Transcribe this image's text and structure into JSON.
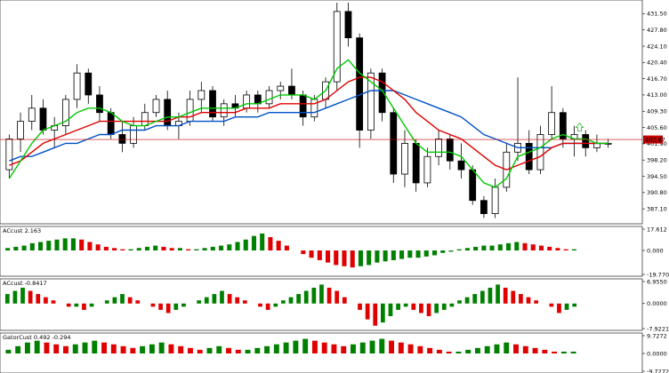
{
  "chart_data": [
    {
      "type": "candlestick",
      "y_ticks": [
        "431.50",
        "427.80",
        "424.10",
        "420.40",
        "416.70",
        "413.00",
        "409.30",
        "405.60",
        "401.90",
        "398.20",
        "394.50",
        "390.80",
        "387.10"
      ],
      "ylim": [
        384.5,
        433.8
      ],
      "price_label": "402.87",
      "price_value": 402.87,
      "colors": {
        "ma_fast": "#00c800",
        "ma_mid": "#e00000",
        "ma_slow": "#0050c8",
        "price_line": "#c00000",
        "price_tag": "#c00000",
        "candle": "#000000",
        "arrow": "#40c040"
      },
      "candles": [
        {
          "o": 396,
          "h": 404,
          "l": 394,
          "c": 403
        },
        {
          "o": 403,
          "h": 409,
          "l": 400,
          "c": 407
        },
        {
          "o": 407,
          "h": 413,
          "l": 405,
          "c": 410
        },
        {
          "o": 410,
          "h": 412,
          "l": 404,
          "c": 405
        },
        {
          "o": 405,
          "h": 408,
          "l": 401,
          "c": 406
        },
        {
          "o": 406,
          "h": 413,
          "l": 404,
          "c": 412
        },
        {
          "o": 412,
          "h": 420,
          "l": 410,
          "c": 418
        },
        {
          "o": 418,
          "h": 419,
          "l": 411,
          "c": 413
        },
        {
          "o": 413,
          "h": 415,
          "l": 407,
          "c": 409
        },
        {
          "o": 409,
          "h": 410,
          "l": 403,
          "c": 404
        },
        {
          "o": 404,
          "h": 407,
          "l": 400,
          "c": 402
        },
        {
          "o": 402,
          "h": 408,
          "l": 401,
          "c": 406
        },
        {
          "o": 406,
          "h": 411,
          "l": 405,
          "c": 409
        },
        {
          "o": 409,
          "h": 413,
          "l": 408,
          "c": 412
        },
        {
          "o": 412,
          "h": 414,
          "l": 405,
          "c": 406
        },
        {
          "o": 406,
          "h": 409,
          "l": 403,
          "c": 407
        },
        {
          "o": 407,
          "h": 414,
          "l": 406,
          "c": 412
        },
        {
          "o": 412,
          "h": 416,
          "l": 409,
          "c": 414
        },
        {
          "o": 414,
          "h": 415,
          "l": 407,
          "c": 408
        },
        {
          "o": 408,
          "h": 412,
          "l": 406,
          "c": 411
        },
        {
          "o": 411,
          "h": 413,
          "l": 408,
          "c": 410
        },
        {
          "o": 410,
          "h": 414,
          "l": 409,
          "c": 413
        },
        {
          "o": 413,
          "h": 414,
          "l": 409,
          "c": 411
        },
        {
          "o": 411,
          "h": 415,
          "l": 410,
          "c": 414
        },
        {
          "o": 414,
          "h": 416,
          "l": 412,
          "c": 415
        },
        {
          "o": 415,
          "h": 419,
          "l": 412,
          "c": 413
        },
        {
          "o": 413,
          "h": 414,
          "l": 406,
          "c": 408
        },
        {
          "o": 408,
          "h": 413,
          "l": 407,
          "c": 412
        },
        {
          "o": 412,
          "h": 417,
          "l": 410,
          "c": 416
        },
        {
          "o": 416,
          "h": 434,
          "l": 414,
          "c": 432
        },
        {
          "o": 432,
          "h": 434,
          "l": 424,
          "c": 426
        },
        {
          "o": 426,
          "h": 427,
          "l": 401,
          "c": 405
        },
        {
          "o": 405,
          "h": 419,
          "l": 403,
          "c": 418
        },
        {
          "o": 418,
          "h": 419,
          "l": 407,
          "c": 409
        },
        {
          "o": 409,
          "h": 410,
          "l": 393,
          "c": 395
        },
        {
          "o": 395,
          "h": 405,
          "l": 392,
          "c": 402
        },
        {
          "o": 402,
          "h": 403,
          "l": 391,
          "c": 393
        },
        {
          "o": 393,
          "h": 401,
          "l": 392,
          "c": 399
        },
        {
          "o": 399,
          "h": 405,
          "l": 397,
          "c": 403
        },
        {
          "o": 403,
          "h": 404,
          "l": 396,
          "c": 398
        },
        {
          "o": 398,
          "h": 402,
          "l": 394,
          "c": 396
        },
        {
          "o": 396,
          "h": 397,
          "l": 388,
          "c": 389
        },
        {
          "o": 389,
          "h": 390,
          "l": 385,
          "c": 386
        },
        {
          "o": 386,
          "h": 394,
          "l": 385,
          "c": 392
        },
        {
          "o": 392,
          "h": 402,
          "l": 391,
          "c": 400
        },
        {
          "o": 400,
          "h": 417,
          "l": 398,
          "c": 402
        },
        {
          "o": 402,
          "h": 405,
          "l": 395,
          "c": 396
        },
        {
          "o": 396,
          "h": 406,
          "l": 395,
          "c": 404
        },
        {
          "o": 404,
          "h": 415,
          "l": 403,
          "c": 409
        },
        {
          "o": 409,
          "h": 410,
          "l": 401,
          "c": 403
        },
        {
          "o": 403,
          "h": 406,
          "l": 399,
          "c": 404
        },
        {
          "o": 404,
          "h": 405,
          "l": 399,
          "c": 401
        },
        {
          "o": 401,
          "h": 404,
          "l": 400,
          "c": 402
        },
        {
          "o": 402,
          "h": 403,
          "l": 401,
          "c": 402
        }
      ],
      "ma_fast": [
        394,
        398,
        402,
        405,
        406,
        407,
        409,
        410,
        410,
        409,
        407,
        406,
        406,
        407,
        408,
        408,
        409,
        410,
        410,
        410,
        410,
        411,
        411,
        412,
        413,
        413,
        413,
        412,
        414,
        419,
        421,
        418,
        416,
        414,
        410,
        406,
        402,
        400,
        400,
        400,
        399,
        396,
        393,
        392,
        394,
        399,
        400,
        401,
        403,
        404,
        403,
        403,
        402,
        402
      ],
      "ma_mid": [
        397,
        398,
        400,
        402,
        403,
        404,
        405,
        406,
        407,
        407,
        407,
        407,
        407,
        407,
        407,
        408,
        408,
        409,
        409,
        409,
        409,
        410,
        410,
        410,
        411,
        411,
        411,
        411,
        412,
        414,
        416,
        417,
        417,
        416,
        414,
        412,
        409,
        407,
        405,
        404,
        403,
        401,
        399,
        397,
        396,
        397,
        398,
        399,
        401,
        402,
        402,
        402,
        402,
        402
      ],
      "ma_slow": [
        398,
        399,
        399,
        400,
        401,
        402,
        402,
        403,
        404,
        404,
        405,
        405,
        405,
        406,
        406,
        406,
        407,
        407,
        407,
        407,
        408,
        408,
        408,
        409,
        409,
        409,
        409,
        409,
        410,
        411,
        412,
        413,
        414,
        414,
        414,
        413,
        412,
        411,
        410,
        409,
        408,
        406,
        404,
        403,
        402,
        401,
        401,
        401,
        401,
        402,
        402,
        402,
        402,
        402
      ]
    },
    {
      "type": "histogram",
      "title": "ACcust 2.163",
      "y_ticks": [
        "17.612",
        "0.000",
        "-19.770"
      ],
      "ylim": [
        -19.77,
        17.612
      ],
      "values": [
        2,
        3,
        4,
        6,
        7,
        8,
        9,
        10,
        10,
        9,
        7,
        5,
        3,
        2,
        1,
        1,
        2,
        3,
        4,
        3,
        2,
        2,
        1,
        1,
        2,
        3,
        4,
        5,
        7,
        9,
        12,
        14,
        11,
        8,
        4,
        0,
        -3,
        -6,
        -8,
        -10,
        -12,
        -13,
        -14,
        -13,
        -12,
        -10,
        -9,
        -8,
        -7,
        -6,
        -6,
        -5,
        -4,
        -2,
        -1,
        1,
        2,
        3,
        4,
        4,
        5,
        6,
        7,
        6,
        5,
        4,
        3,
        2,
        1,
        1
      ],
      "colors": {
        "up": "#008000",
        "down": "#e00000"
      }
    },
    {
      "type": "histogram",
      "title": "ACcust -0.8417",
      "y_ticks": [
        "6.9550",
        "0.0000",
        "-7.9221"
      ],
      "ylim": [
        -7.9221,
        6.955
      ],
      "values": [
        3,
        4,
        5,
        4,
        3,
        2,
        1,
        0,
        -1,
        -1,
        -2,
        -1,
        0,
        1,
        2,
        3,
        2,
        1,
        0,
        -1,
        -2,
        -3,
        -2,
        -1,
        0,
        1,
        2,
        3,
        4,
        3,
        2,
        1,
        0,
        -1,
        -2,
        -1,
        1,
        2,
        3,
        4,
        5,
        6,
        5,
        4,
        2,
        0,
        -2,
        -5,
        -7,
        -6,
        -4,
        -2,
        -1,
        -2,
        -3,
        -4,
        -3,
        -2,
        -1,
        1,
        2,
        3,
        4,
        5,
        6,
        5,
        4,
        3,
        2,
        1,
        0,
        -1,
        -3,
        -2,
        -1
      ],
      "colors": {
        "up": "#008000",
        "down": "#e00000"
      }
    },
    {
      "type": "histogram",
      "title": "GatorCust 0.492 -0.294",
      "y_ticks": [
        "9.7272",
        "0.0000",
        "-9.7272"
      ],
      "ylim": [
        -9.7272,
        9.7272
      ],
      "values": [
        2,
        4,
        6,
        7,
        6,
        5,
        4,
        5,
        6,
        7,
        6,
        5,
        4,
        3,
        4,
        5,
        6,
        5,
        4,
        3,
        2,
        3,
        4,
        3,
        2,
        2,
        3,
        4,
        5,
        6,
        7,
        8,
        7,
        6,
        5,
        4,
        5,
        6,
        7,
        8,
        7,
        6,
        5,
        4,
        3,
        2,
        1,
        1,
        2,
        3,
        4,
        5,
        6,
        5,
        4,
        3,
        2,
        1,
        1,
        1
      ],
      "colors": {
        "up": "#008000",
        "down": "#e00000"
      }
    }
  ]
}
